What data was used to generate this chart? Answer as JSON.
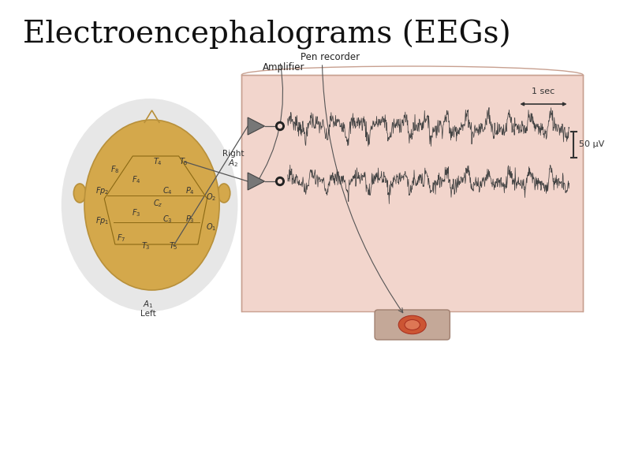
{
  "title": "Electroencephalograms (EEGs)",
  "title_fontsize": 28,
  "bg_color": "#ffffff",
  "paper_color": "#f2d5cc",
  "paper_border": "#c8a090",
  "head_color": "#d4a84b",
  "head_outline": "#b8903a",
  "inner_line_color": "#8b6914",
  "signal_color": "#444444",
  "annotation_color": "#333333",
  "gray_bg_color": "#d8d8d8",
  "pen_recorder_label": "Pen recorder",
  "amplifier_label": "Amplifier",
  "scale_50uV": "50 μV",
  "scale_1sec": "1 sec",
  "right_label": "Right",
  "a2_label": "A₂",
  "a1_label": "A₁",
  "left_label": "Left"
}
